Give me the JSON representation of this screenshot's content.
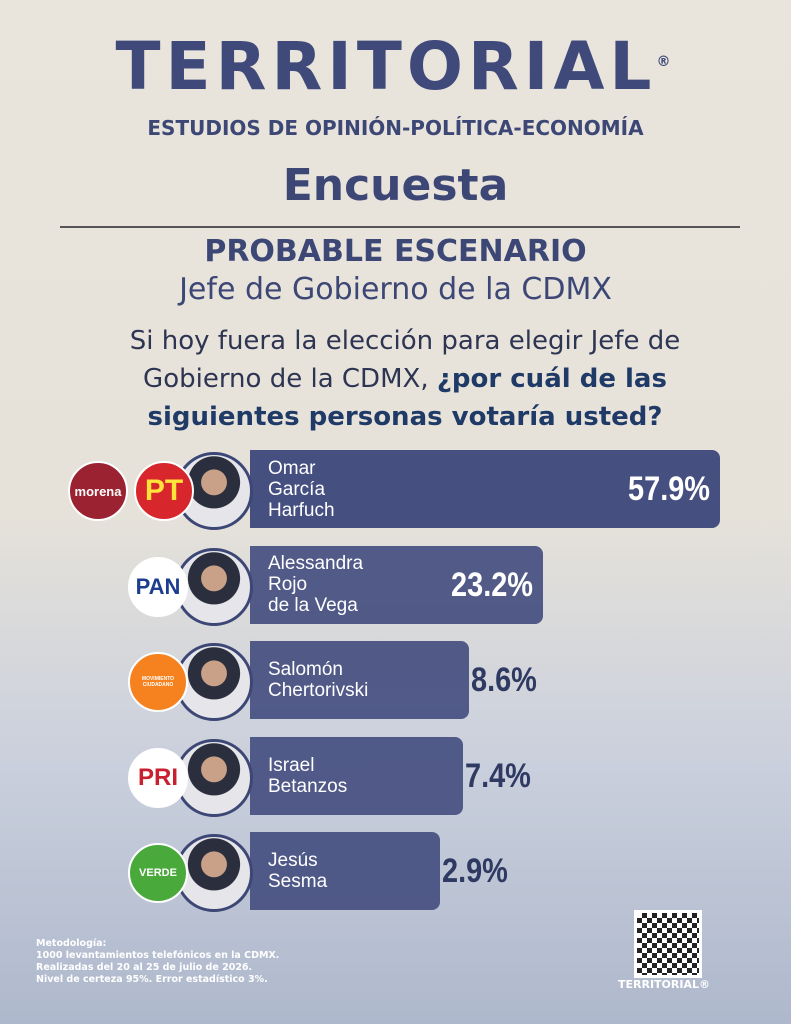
{
  "header": {
    "brand": "TERRITORIAL",
    "registered": "®",
    "tagline": "ESTUDIOS DE OPINIÓN-POLÍTICA-ECONOMÍA",
    "survey": "Encuesta",
    "scenario": "PROBABLE ESCENARIO",
    "office": "Jefe de Gobierno de la CDMX",
    "question": "Si hoy fuera la elección para elegir Jefe de Gobierno de la CDMX, ",
    "question_bold": "¿por cuál de las siguientes personas votaría usted?"
  },
  "chart_data": {
    "type": "bar",
    "orientation": "horizontal",
    "color": "#454f80",
    "categories": [
      "Omar\nGarcía\nHarfuch",
      "Alessandra\nRojo\nde la Vega",
      "Salomón\nChertorivski",
      "Israel\nBetanzos",
      "Jesús\nSesma"
    ],
    "parties": [
      [
        "morena",
        "PT"
      ],
      [
        "PAN"
      ],
      [
        "MOVIMIENTO CIUDADANO"
      ],
      [
        "PRI"
      ],
      [
        "VERDE"
      ]
    ],
    "values": [
      57.9,
      23.2,
      8.6,
      7.4,
      2.9
    ],
    "value_labels": [
      "57.9%",
      "23.2%",
      "8.6%",
      "7.4%",
      "2.9%"
    ]
  },
  "footer": {
    "methodology_title": "Metodología:",
    "methodology": [
      "1000 levantamientos telefónicos en la CDMX.",
      "Realizadas del 20 al 25 de julio de 2026.",
      "Nivel de certeza 95%. Error estadístico 3%."
    ],
    "qr_brand": "TERRITORIAL®"
  }
}
